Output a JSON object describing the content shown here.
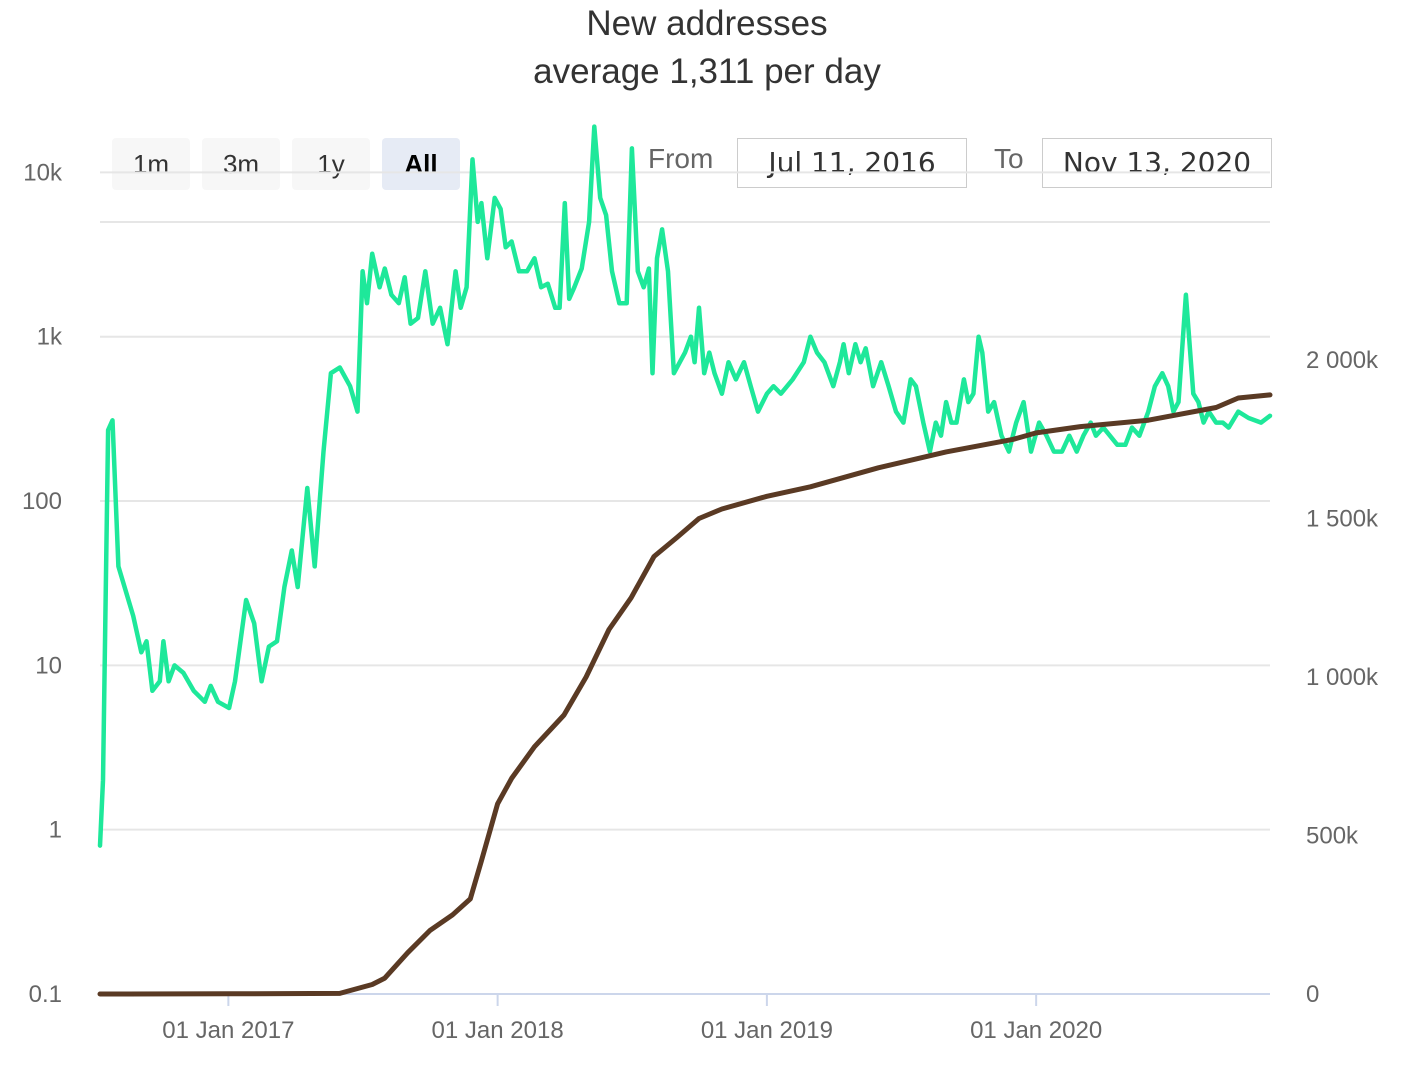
{
  "header": {
    "title": "New addresses",
    "subtitle": "average 1,311 per day"
  },
  "range_selector": {
    "buttons": [
      "1m",
      "3m",
      "1y",
      "All"
    ],
    "selected": "All",
    "from_label": "From",
    "from_value": "Jul 11, 2016",
    "to_label": "To",
    "to_value": "Nov 13, 2020"
  },
  "colors": {
    "new_addresses": "#1ee89a",
    "total_addresses": "#5a3a24",
    "gridline": "#e6e6e6",
    "axis": "#ccd6eb"
  },
  "chart_data": {
    "type": "line",
    "title": "New addresses",
    "subtitle": "average 1,311 per day",
    "x_range": [
      "2016-07-11",
      "2020-11-13"
    ],
    "x_ticks": [
      "2017-01-01",
      "2018-01-01",
      "2019-01-01",
      "2020-01-01"
    ],
    "x_tick_labels": [
      "01 Jan 2017",
      "01 Jan 2018",
      "01 Jan 2019",
      "01 Jan 2020"
    ],
    "y_left": {
      "scale": "log",
      "range": [
        0.1,
        30000
      ],
      "ticks": [
        0.1,
        1,
        10,
        100,
        1000,
        10000
      ],
      "tick_labels": [
        "0.1",
        "1",
        "10",
        "100",
        "1k",
        "10k"
      ]
    },
    "y_right": {
      "scale": "linear",
      "range": [
        0,
        2000000
      ],
      "ticks": [
        0,
        500000,
        1000000,
        1500000,
        2000000
      ],
      "tick_labels": [
        "0",
        "500k",
        "1 000k",
        "1 500k",
        "2 000k"
      ]
    },
    "grid": true,
    "series": [
      {
        "axis": "left",
        "points": [
          [
            "2016-07-11",
            0.8
          ],
          [
            "2016-07-15",
            2
          ],
          [
            "2016-07-22",
            270
          ],
          [
            "2016-07-28",
            310
          ],
          [
            "2016-08-05",
            40
          ],
          [
            "2016-08-25",
            20
          ],
          [
            "2016-09-05",
            12
          ],
          [
            "2016-09-12",
            14
          ],
          [
            "2016-09-20",
            7
          ],
          [
            "2016-09-30",
            8
          ],
          [
            "2016-10-05",
            14
          ],
          [
            "2016-10-12",
            8
          ],
          [
            "2016-10-20",
            10
          ],
          [
            "2016-11-01",
            9
          ],
          [
            "2016-11-15",
            7
          ],
          [
            "2016-11-30",
            6
          ],
          [
            "2016-12-08",
            7.5
          ],
          [
            "2016-12-18",
            6
          ],
          [
            "2017-01-02",
            5.5
          ],
          [
            "2017-01-10",
            8
          ],
          [
            "2017-01-25",
            25
          ],
          [
            "2017-02-05",
            18
          ],
          [
            "2017-02-15",
            8
          ],
          [
            "2017-02-25",
            13
          ],
          [
            "2017-03-08",
            14
          ],
          [
            "2017-03-18",
            30
          ],
          [
            "2017-03-28",
            50
          ],
          [
            "2017-04-05",
            30
          ],
          [
            "2017-04-18",
            120
          ],
          [
            "2017-04-28",
            40
          ],
          [
            "2017-05-10",
            200
          ],
          [
            "2017-05-20",
            600
          ],
          [
            "2017-06-01",
            650
          ],
          [
            "2017-06-15",
            500
          ],
          [
            "2017-06-25",
            350
          ],
          [
            "2017-07-02",
            2500
          ],
          [
            "2017-07-08",
            1600
          ],
          [
            "2017-07-15",
            3200
          ],
          [
            "2017-07-25",
            2000
          ],
          [
            "2017-08-01",
            2600
          ],
          [
            "2017-08-10",
            1800
          ],
          [
            "2017-08-20",
            1600
          ],
          [
            "2017-08-28",
            2300
          ],
          [
            "2017-09-05",
            1200
          ],
          [
            "2017-09-15",
            1300
          ],
          [
            "2017-09-25",
            2500
          ],
          [
            "2017-10-05",
            1200
          ],
          [
            "2017-10-15",
            1500
          ],
          [
            "2017-10-25",
            900
          ],
          [
            "2017-11-05",
            2500
          ],
          [
            "2017-11-12",
            1500
          ],
          [
            "2017-11-20",
            2000
          ],
          [
            "2017-11-28",
            12000
          ],
          [
            "2017-12-05",
            5000
          ],
          [
            "2017-12-10",
            6500
          ],
          [
            "2017-12-18",
            3000
          ],
          [
            "2017-12-28",
            7000
          ],
          [
            "2018-01-05",
            6000
          ],
          [
            "2018-01-12",
            3500
          ],
          [
            "2018-01-20",
            3800
          ],
          [
            "2018-01-30",
            2500
          ],
          [
            "2018-02-10",
            2500
          ],
          [
            "2018-02-20",
            3000
          ],
          [
            "2018-03-01",
            2000
          ],
          [
            "2018-03-10",
            2100
          ],
          [
            "2018-03-20",
            1500
          ],
          [
            "2018-03-26",
            1500
          ],
          [
            "2018-04-02",
            6500
          ],
          [
            "2018-04-08",
            1700
          ],
          [
            "2018-04-15",
            2000
          ],
          [
            "2018-04-25",
            2600
          ],
          [
            "2018-05-05",
            5000
          ],
          [
            "2018-05-12",
            19000
          ],
          [
            "2018-05-20",
            7000
          ],
          [
            "2018-05-28",
            5500
          ],
          [
            "2018-06-05",
            2500
          ],
          [
            "2018-06-15",
            1600
          ],
          [
            "2018-06-25",
            1600
          ],
          [
            "2018-07-02",
            14000
          ],
          [
            "2018-07-10",
            2500
          ],
          [
            "2018-07-18",
            2000
          ],
          [
            "2018-07-25",
            2600
          ],
          [
            "2018-07-30",
            600
          ],
          [
            "2018-08-05",
            3000
          ],
          [
            "2018-08-12",
            4500
          ],
          [
            "2018-08-20",
            2500
          ],
          [
            "2018-08-28",
            600
          ],
          [
            "2018-09-05",
            700
          ],
          [
            "2018-09-12",
            800
          ],
          [
            "2018-09-20",
            1000
          ],
          [
            "2018-09-25",
            700
          ],
          [
            "2018-10-01",
            1500
          ],
          [
            "2018-10-08",
            600
          ],
          [
            "2018-10-15",
            800
          ],
          [
            "2018-10-22",
            600
          ],
          [
            "2018-11-01",
            450
          ],
          [
            "2018-11-10",
            700
          ],
          [
            "2018-11-20",
            550
          ],
          [
            "2018-12-01",
            700
          ],
          [
            "2018-12-10",
            500
          ],
          [
            "2018-12-20",
            350
          ],
          [
            "2019-01-01",
            450
          ],
          [
            "2019-01-10",
            500
          ],
          [
            "2019-01-20",
            450
          ],
          [
            "2019-02-05",
            550
          ],
          [
            "2019-02-20",
            700
          ],
          [
            "2019-03-01",
            1000
          ],
          [
            "2019-03-10",
            800
          ],
          [
            "2019-03-20",
            700
          ],
          [
            "2019-04-01",
            500
          ],
          [
            "2019-04-10",
            700
          ],
          [
            "2019-04-15",
            900
          ],
          [
            "2019-04-22",
            600
          ],
          [
            "2019-05-01",
            900
          ],
          [
            "2019-05-08",
            700
          ],
          [
            "2019-05-15",
            850
          ],
          [
            "2019-05-25",
            500
          ],
          [
            "2019-06-05",
            700
          ],
          [
            "2019-06-15",
            500
          ],
          [
            "2019-06-25",
            350
          ],
          [
            "2019-07-05",
            300
          ],
          [
            "2019-07-15",
            550
          ],
          [
            "2019-07-22",
            500
          ],
          [
            "2019-08-01",
            300
          ],
          [
            "2019-08-10",
            200
          ],
          [
            "2019-08-18",
            300
          ],
          [
            "2019-08-25",
            250
          ],
          [
            "2019-09-01",
            400
          ],
          [
            "2019-09-08",
            300
          ],
          [
            "2019-09-15",
            300
          ],
          [
            "2019-09-25",
            550
          ],
          [
            "2019-10-01",
            400
          ],
          [
            "2019-10-08",
            450
          ],
          [
            "2019-10-15",
            1000
          ],
          [
            "2019-10-20",
            800
          ],
          [
            "2019-10-28",
            350
          ],
          [
            "2019-11-05",
            400
          ],
          [
            "2019-11-15",
            250
          ],
          [
            "2019-11-25",
            200
          ],
          [
            "2019-12-05",
            300
          ],
          [
            "2019-12-15",
            400
          ],
          [
            "2019-12-25",
            200
          ],
          [
            "2020-01-05",
            300
          ],
          [
            "2020-01-15",
            250
          ],
          [
            "2020-01-25",
            200
          ],
          [
            "2020-02-05",
            200
          ],
          [
            "2020-02-15",
            250
          ],
          [
            "2020-02-25",
            200
          ],
          [
            "2020-03-05",
            250
          ],
          [
            "2020-03-15",
            300
          ],
          [
            "2020-03-22",
            250
          ],
          [
            "2020-04-01",
            280
          ],
          [
            "2020-04-10",
            250
          ],
          [
            "2020-04-20",
            220
          ],
          [
            "2020-05-01",
            220
          ],
          [
            "2020-05-10",
            280
          ],
          [
            "2020-05-20",
            250
          ],
          [
            "2020-06-01",
            350
          ],
          [
            "2020-06-10",
            500
          ],
          [
            "2020-06-20",
            600
          ],
          [
            "2020-06-28",
            500
          ],
          [
            "2020-07-05",
            350
          ],
          [
            "2020-07-12",
            400
          ],
          [
            "2020-07-22",
            1800
          ],
          [
            "2020-08-01",
            450
          ],
          [
            "2020-08-08",
            400
          ],
          [
            "2020-08-15",
            300
          ],
          [
            "2020-08-22",
            350
          ],
          [
            "2020-09-01",
            300
          ],
          [
            "2020-09-10",
            300
          ],
          [
            "2020-09-18",
            280
          ],
          [
            "2020-10-01",
            350
          ],
          [
            "2020-10-15",
            320
          ],
          [
            "2020-11-01",
            300
          ],
          [
            "2020-11-13",
            330
          ]
        ]
      },
      {
        "axis": "right",
        "points": [
          [
            "2016-07-11",
            0
          ],
          [
            "2017-01-01",
            500
          ],
          [
            "2017-06-01",
            2000
          ],
          [
            "2017-07-15",
            30000
          ],
          [
            "2017-08-01",
            50000
          ],
          [
            "2017-09-01",
            130000
          ],
          [
            "2017-10-01",
            200000
          ],
          [
            "2017-11-01",
            250000
          ],
          [
            "2017-11-25",
            300000
          ],
          [
            "2017-12-10",
            420000
          ],
          [
            "2018-01-01",
            600000
          ],
          [
            "2018-01-20",
            680000
          ],
          [
            "2018-02-20",
            780000
          ],
          [
            "2018-03-20",
            850000
          ],
          [
            "2018-04-01",
            880000
          ],
          [
            "2018-05-01",
            1000000
          ],
          [
            "2018-06-01",
            1150000
          ],
          [
            "2018-07-01",
            1250000
          ],
          [
            "2018-08-01",
            1380000
          ],
          [
            "2018-09-01",
            1440000
          ],
          [
            "2018-10-01",
            1500000
          ],
          [
            "2018-11-01",
            1530000
          ],
          [
            "2019-01-01",
            1570000
          ],
          [
            "2019-03-01",
            1600000
          ],
          [
            "2019-06-01",
            1660000
          ],
          [
            "2019-09-01",
            1710000
          ],
          [
            "2019-12-01",
            1750000
          ],
          [
            "2020-01-01",
            1770000
          ],
          [
            "2020-03-01",
            1790000
          ],
          [
            "2020-06-01",
            1810000
          ],
          [
            "2020-09-01",
            1850000
          ],
          [
            "2020-10-01",
            1880000
          ],
          [
            "2020-11-13",
            1890000
          ]
        ]
      }
    ]
  }
}
